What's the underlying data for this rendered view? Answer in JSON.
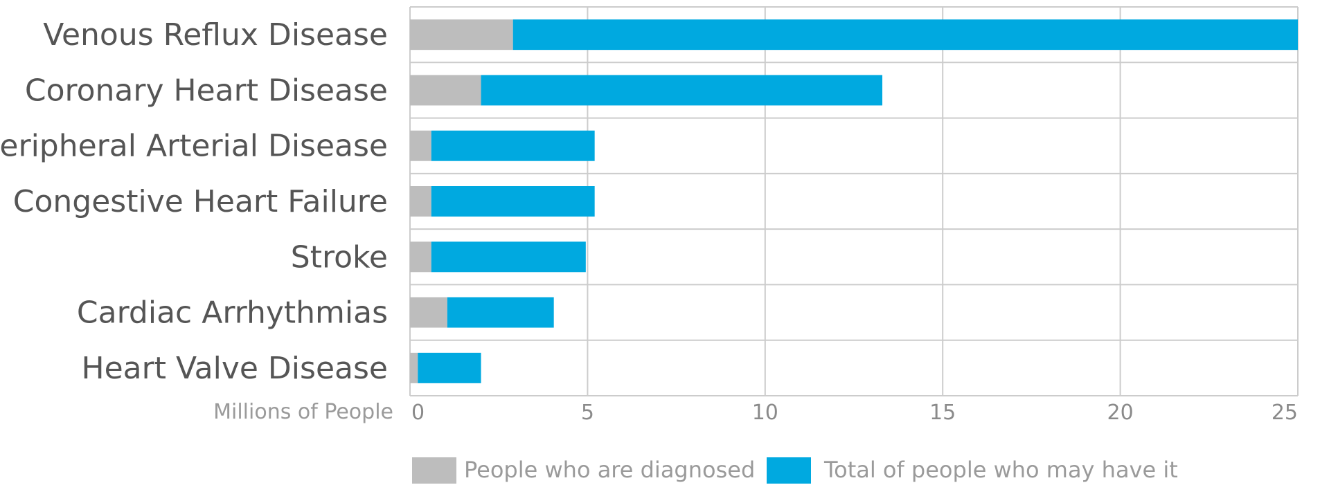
{
  "chart_data": {
    "type": "bar",
    "orientation": "horizontal",
    "stacked": true,
    "title": "",
    "xlabel": "Millions of People",
    "ylabel": "",
    "xlim": [
      0,
      25
    ],
    "xticks": [
      "0",
      "5",
      "10",
      "15",
      "20",
      "25"
    ],
    "grid": true,
    "legend_position": "bottom",
    "categories": [
      "Venous Reflux Disease",
      "Coronary Heart Disease",
      "Peripheral Arterial Disease",
      "Congestive Heart Failure",
      "Stroke",
      "Cardiac Arrhythmias",
      "Heart Valve Disease"
    ],
    "series": [
      {
        "name": "People who are diagnosed",
        "color": "#bdbdbd",
        "values": [
          2.9,
          2.0,
          0.6,
          0.6,
          0.6,
          1.05,
          0.22
        ]
      },
      {
        "name": "Total of people who may have it",
        "color": "#00a9e0",
        "values": [
          22.1,
          11.3,
          4.6,
          4.6,
          4.35,
          3.0,
          1.78
        ]
      }
    ]
  }
}
